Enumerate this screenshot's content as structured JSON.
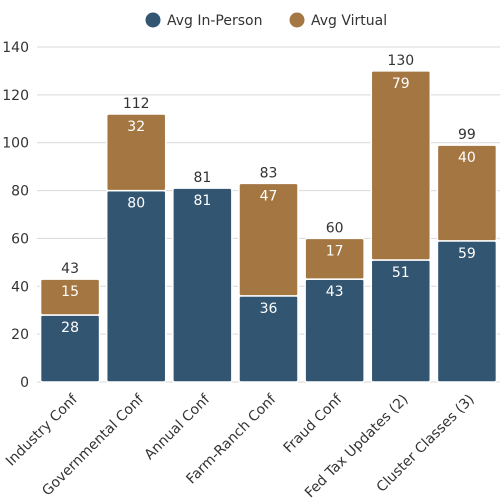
{
  "chart_data": {
    "type": "bar",
    "stacked": true,
    "categories": [
      "Industry Conf",
      "Governmental Conf",
      "Annual Conf",
      "Farm-Ranch Conf",
      "Fraud Conf",
      "Fed Tax Updates (2)",
      "Cluster Classes (3)"
    ],
    "series": [
      {
        "name": "Avg In-Person",
        "color": "#325572",
        "values": [
          28,
          80,
          81,
          36,
          43,
          51,
          59
        ]
      },
      {
        "name": "Avg Virtual",
        "color": "#A47642",
        "values": [
          15,
          32,
          null,
          47,
          17,
          79,
          40
        ]
      }
    ],
    "totals": [
      43,
      112,
      81,
      83,
      60,
      130,
      99
    ],
    "ylim": [
      0,
      140
    ],
    "yticks": [
      0,
      20,
      40,
      60,
      80,
      100,
      120,
      140
    ],
    "grid": true,
    "legend_position": "top-center",
    "title": "",
    "xlabel": "",
    "ylabel": ""
  }
}
